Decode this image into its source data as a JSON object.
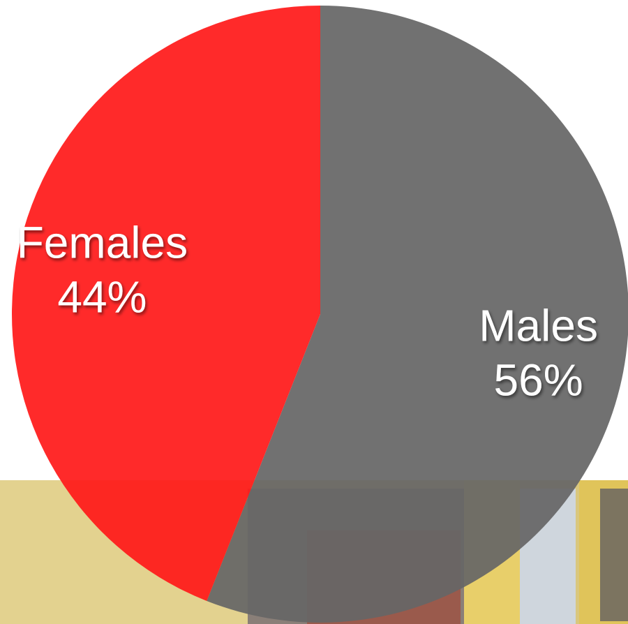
{
  "chart_data": {
    "type": "pie",
    "categories": [
      "Males",
      "Females"
    ],
    "values": [
      56,
      44
    ],
    "value_labels": [
      "56%",
      "44%"
    ],
    "colors": [
      "#666666",
      "#ff1a1a"
    ]
  }
}
